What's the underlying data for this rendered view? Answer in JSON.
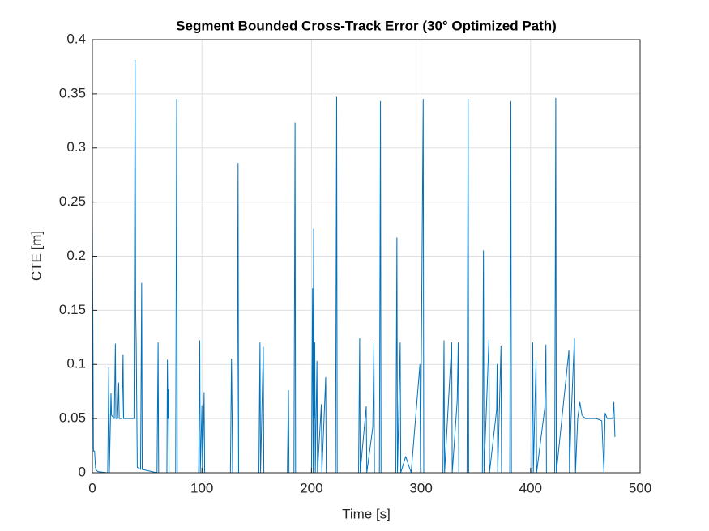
{
  "chart_data": {
    "type": "line",
    "title": "Segment Bounded Cross-Track Error (30° Optimized Path)",
    "xlabel": "Time [s]",
    "ylabel": "CTE [m]",
    "xlim": [
      0,
      500
    ],
    "ylim": [
      0,
      0.4
    ],
    "xticks": [
      0,
      100,
      200,
      300,
      400,
      500
    ],
    "yticks": [
      0,
      0.05,
      0.1,
      0.15,
      0.2,
      0.25,
      0.3,
      0.35,
      0.4
    ],
    "grid": true,
    "x": [
      0,
      1,
      2,
      3,
      5,
      14,
      15,
      15.5,
      17,
      17.5,
      20,
      21,
      21.5,
      23,
      24,
      24.5,
      27,
      28,
      28.5,
      38,
      39,
      39.5,
      40,
      41,
      44,
      45,
      45.5,
      59,
      60,
      60.5,
      68,
      68.5,
      69,
      69.5,
      70,
      76,
      77,
      77.5,
      97,
      98,
      98.5,
      100,
      100.5,
      102,
      102.5,
      126,
      127,
      127.5,
      128,
      132,
      133,
      133.5,
      152,
      153,
      153.5,
      155,
      156,
      156.5,
      178,
      179,
      179.5,
      184,
      185,
      185.5,
      200,
      201,
      201.5,
      202,
      202.5,
      203,
      203.5,
      205,
      205.5,
      209,
      209.5,
      213,
      213.5,
      222,
      223,
      223.5,
      243,
      244,
      244.5,
      250,
      250.5,
      256,
      257,
      257.5,
      262,
      263,
      263.5,
      277,
      278,
      278.5,
      281,
      281.5,
      286,
      291,
      299,
      299.5,
      302,
      302.5,
      320,
      321,
      321.5,
      328,
      328.5,
      333,
      334,
      334.5,
      342,
      343,
      343.5,
      356,
      357,
      357.5,
      362,
      362.5,
      369,
      369.5,
      370,
      373,
      373.5,
      381,
      382,
      382.5,
      401,
      402,
      402.5,
      405,
      405.5,
      413,
      414,
      414.5,
      422,
      423,
      423.5,
      435,
      435.5,
      437,
      440,
      441,
      443,
      445,
      447,
      450,
      460,
      465,
      467,
      468,
      470,
      475,
      476,
      477
    ],
    "series": [
      {
        "color": "#0072bd",
        "values": [
          0.245,
          0.02,
          0.02,
          0.003,
          0.001,
          0,
          0.097,
          0,
          0.073,
          0.053,
          0.05,
          0.119,
          0.05,
          0.05,
          0.083,
          0.05,
          0.05,
          0.109,
          0.05,
          0.05,
          0.381,
          0.15,
          0.12,
          0.005,
          0.003,
          0.175,
          0.003,
          0,
          0.12,
          0,
          0,
          0.104,
          0.05,
          0.077,
          0,
          0,
          0.345,
          0,
          0,
          0.122,
          0,
          0.062,
          0,
          0.074,
          0,
          0,
          0.105,
          0.058,
          0,
          0,
          0.286,
          0,
          0,
          0.12,
          0,
          0.069,
          0.116,
          0,
          0,
          0.076,
          0,
          0,
          0.323,
          0,
          0,
          0.17,
          0,
          0.225,
          0.05,
          0.12,
          0,
          0.103,
          0,
          0.063,
          0,
          0.088,
          0,
          0,
          0.347,
          0,
          0,
          0.124,
          0,
          0.061,
          0,
          0.042,
          0.12,
          0,
          0,
          0.343,
          0,
          0,
          0.217,
          0,
          0.12,
          0,
          0.015,
          0,
          0.1,
          0,
          0.345,
          0,
          0,
          0.122,
          0,
          0.12,
          0,
          0.066,
          0.12,
          0,
          0,
          0.345,
          0,
          0,
          0.205,
          0,
          0.123,
          0,
          0.058,
          0.1,
          0,
          0.117,
          0,
          0,
          0.343,
          0,
          0,
          0.12,
          0,
          0.104,
          0,
          0.06,
          0.118,
          0,
          0,
          0.346,
          0,
          0.113,
          0,
          0.05,
          0.124,
          0,
          0.05,
          0.065,
          0.053,
          0.05,
          0.05,
          0.048,
          0,
          0.055,
          0.05,
          0.05,
          0.065,
          0.033
        ]
      }
    ]
  }
}
